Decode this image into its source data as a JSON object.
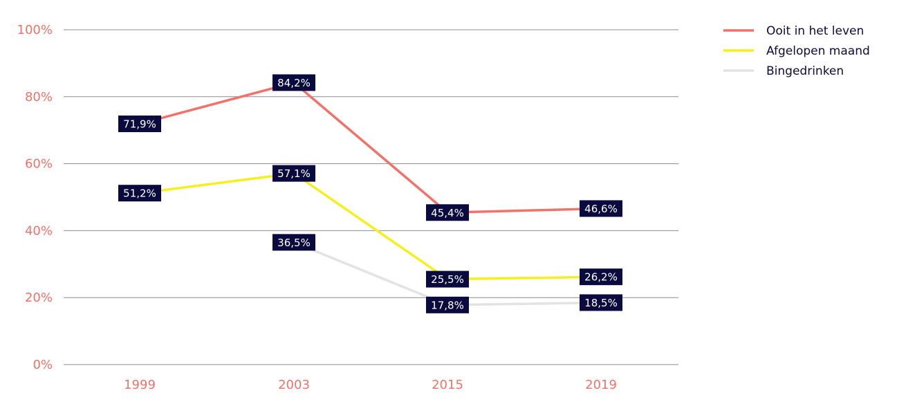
{
  "chart_data": {
    "type": "line",
    "x": [
      "1999",
      "2003",
      "2015",
      "2019"
    ],
    "ylim": [
      0,
      100
    ],
    "y_ticks": [
      "0%",
      "20%",
      "40%",
      "60%",
      "80%",
      "100%"
    ],
    "y_tick_values": [
      0,
      20,
      40,
      60,
      80,
      100
    ],
    "grid": true,
    "legend_position": "top-right",
    "series": [
      {
        "name": "Ooit in het leven",
        "color": "#f27168",
        "values": [
          71.9,
          84.2,
          45.4,
          46.6
        ],
        "labels": [
          "71,9%",
          "84,2%",
          "45,4%",
          "46,6%"
        ]
      },
      {
        "name": "Afgelopen maand",
        "color": "#f5f01c",
        "values": [
          51.2,
          57.1,
          25.5,
          26.2
        ],
        "labels": [
          "51,2%",
          "57,1%",
          "25,5%",
          "26,2%"
        ]
      },
      {
        "name": "Bingedrinken",
        "color": "#e3e3e3",
        "values": [
          null,
          36.5,
          17.8,
          18.5
        ],
        "labels": [
          null,
          "36,5%",
          "17,8%",
          "18,5%"
        ]
      }
    ],
    "colors": {
      "axis_text": "#f27168",
      "gridline": "#8a8a9a",
      "label_bg": "#0b0a3e",
      "label_text": "#ffffff",
      "legend_text": "#0b0a3e"
    }
  }
}
